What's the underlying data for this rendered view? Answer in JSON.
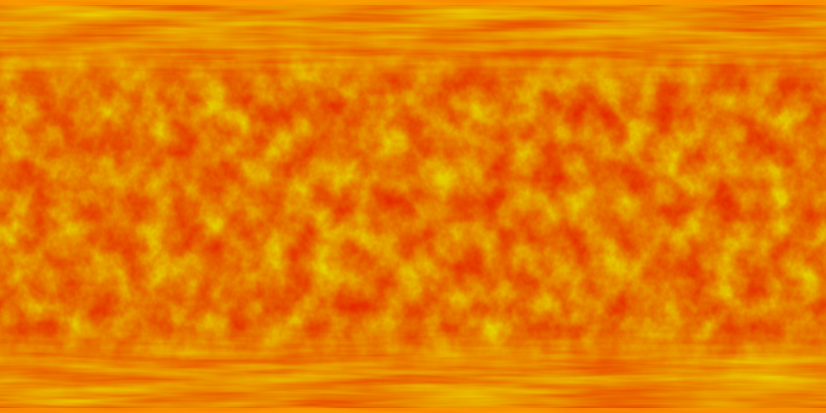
{
  "texture": {
    "subject": "equirectangular-fire-noise",
    "projection": "equirectangular",
    "palette": {
      "deep_red": "#e62a00",
      "red_orange": "#ff4a00",
      "orange": "#ff7a00",
      "amber": "#ffa200",
      "yellow": "#ffd400",
      "pale_yellow": "#fff200"
    },
    "band_colors": {
      "top_edge": "#ff9a00",
      "bottom_edge": "#ff9600"
    }
  }
}
